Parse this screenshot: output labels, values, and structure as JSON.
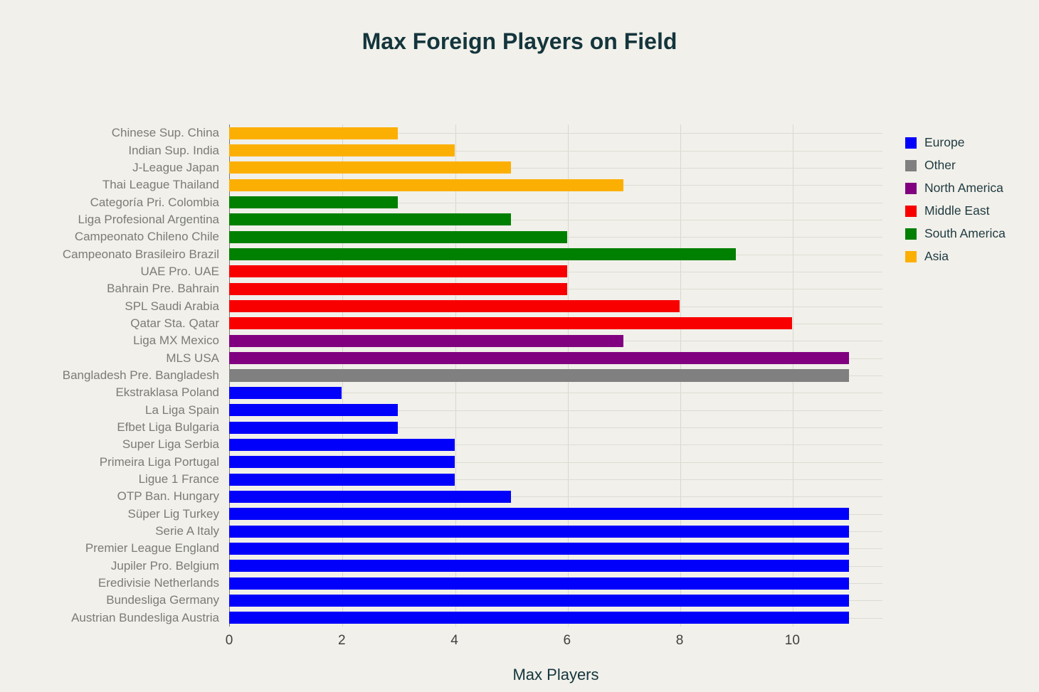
{
  "chart_data": {
    "type": "bar",
    "orientation": "horizontal",
    "title": "Max Foreign Players on Field",
    "xlabel": "Max Players",
    "xlim": [
      0,
      11.6
    ],
    "xticks": [
      0,
      2,
      4,
      6,
      8,
      10
    ],
    "grid": true,
    "legend_position": "right",
    "legend": [
      {
        "label": "Europe",
        "color": "#0000fb"
      },
      {
        "label": "Other",
        "color": "#808080"
      },
      {
        "label": "North America",
        "color": "#800080"
      },
      {
        "label": "Middle East",
        "color": "#f80000"
      },
      {
        "label": "South America",
        "color": "#008000"
      },
      {
        "label": "Asia",
        "color": "#fcaf03"
      }
    ],
    "bars": [
      {
        "label": "Chinese Sup. China",
        "value": 3,
        "group": "Asia"
      },
      {
        "label": "Indian Sup. India",
        "value": 4,
        "group": "Asia"
      },
      {
        "label": "J-League Japan",
        "value": 5,
        "group": "Asia"
      },
      {
        "label": "Thai League Thailand",
        "value": 7,
        "group": "Asia"
      },
      {
        "label": "Categoría Pri. Colombia",
        "value": 3,
        "group": "South America"
      },
      {
        "label": "Liga Profesional Argentina",
        "value": 5,
        "group": "South America"
      },
      {
        "label": "Campeonato Chileno Chile",
        "value": 6,
        "group": "South America"
      },
      {
        "label": "Campeonato Brasileiro Brazil",
        "value": 9,
        "group": "South America"
      },
      {
        "label": "UAE Pro. UAE",
        "value": 6,
        "group": "Middle East"
      },
      {
        "label": "Bahrain Pre. Bahrain",
        "value": 6,
        "group": "Middle East"
      },
      {
        "label": "SPL Saudi Arabia",
        "value": 8,
        "group": "Middle East"
      },
      {
        "label": "Qatar Sta. Qatar",
        "value": 10,
        "group": "Middle East"
      },
      {
        "label": "Liga MX Mexico",
        "value": 7,
        "group": "North America"
      },
      {
        "label": "MLS USA",
        "value": 11,
        "group": "North America"
      },
      {
        "label": "Bangladesh Pre. Bangladesh",
        "value": 11,
        "group": "Other"
      },
      {
        "label": "Ekstraklasa Poland",
        "value": 2,
        "group": "Europe"
      },
      {
        "label": "La Liga Spain",
        "value": 3,
        "group": "Europe"
      },
      {
        "label": "Efbet Liga Bulgaria",
        "value": 3,
        "group": "Europe"
      },
      {
        "label": "Super Liga Serbia",
        "value": 4,
        "group": "Europe"
      },
      {
        "label": "Primeira Liga Portugal",
        "value": 4,
        "group": "Europe"
      },
      {
        "label": "Ligue 1 France",
        "value": 4,
        "group": "Europe"
      },
      {
        "label": "OTP Ban. Hungary",
        "value": 5,
        "group": "Europe"
      },
      {
        "label": "Süper Lig Turkey",
        "value": 11,
        "group": "Europe"
      },
      {
        "label": "Serie A Italy",
        "value": 11,
        "group": "Europe"
      },
      {
        "label": "Premier League England",
        "value": 11,
        "group": "Europe"
      },
      {
        "label": "Jupiler Pro. Belgium",
        "value": 11,
        "group": "Europe"
      },
      {
        "label": "Eredivisie Netherlands",
        "value": 11,
        "group": "Europe"
      },
      {
        "label": "Bundesliga Germany",
        "value": 11,
        "group": "Europe"
      },
      {
        "label": "Austrian Bundesliga Austria",
        "value": 11,
        "group": "Europe"
      }
    ]
  }
}
